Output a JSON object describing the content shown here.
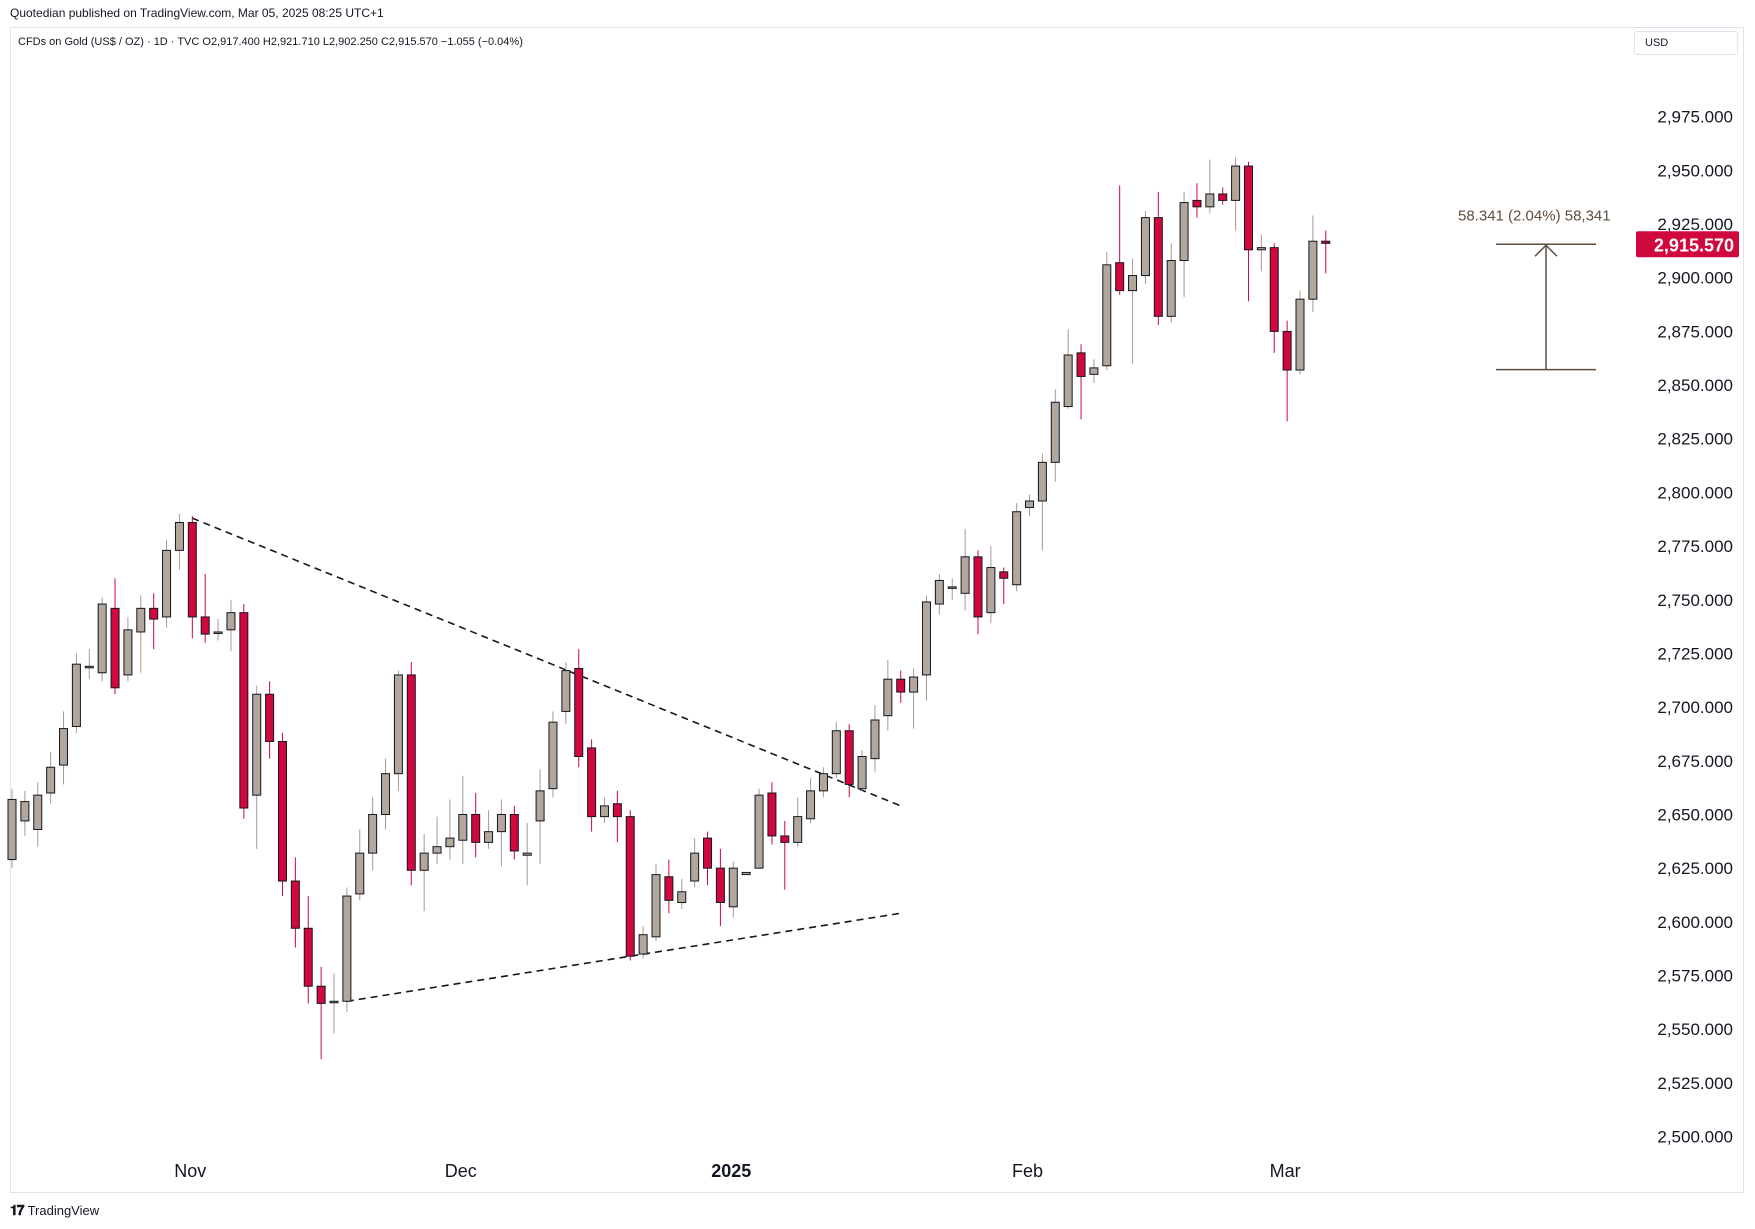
{
  "header": {
    "publish_line": "Quotedian published on TradingView.com, Mar 05, 2025 08:25 UTC+1",
    "symbol_line": "CFDs on Gold (US$ / OZ) · 1D · TVC  O2,917.400  H2,921.710  L2,902.250  C2,915.570  −1.055 (−0.04%)",
    "currency": "USD"
  },
  "footer": {
    "logo_icon": "tradingview-logo-icon",
    "brand": "TradingView"
  },
  "colors": {
    "up": "#b2a79c",
    "down": "#d1083e",
    "wick_up": "#a69b8f",
    "wick_down": "#d1083e",
    "outline": "#131722",
    "measure": "#5d4e3d",
    "price_label_bg": "#d1083e"
  },
  "chart_data": {
    "type": "candlestick",
    "title": "CFDs on Gold (US$ / OZ)",
    "timeframe": "1D",
    "ylim": [
      2490,
      3000
    ],
    "y_ticks": [
      "2,500.000",
      "2,525.000",
      "2,550.000",
      "2,575.000",
      "2,600.000",
      "2,625.000",
      "2,650.000",
      "2,675.000",
      "2,700.000",
      "2,725.000",
      "2,750.000",
      "2,775.000",
      "2,800.000",
      "2,825.000",
      "2,850.000",
      "2,875.000",
      "2,900.000",
      "2,925.000",
      "2,950.000",
      "2,975.000"
    ],
    "x_ticks": [
      {
        "label": "Nov",
        "index": 14
      },
      {
        "label": "Dec",
        "index": 35
      },
      {
        "label": "2025",
        "index": 56
      },
      {
        "label": "Feb",
        "index": 79
      },
      {
        "label": "Mar",
        "index": 99
      }
    ],
    "candles": [
      [
        2629,
        2657,
        2662,
        2625
      ],
      [
        2647,
        2656,
        2661,
        2640
      ],
      [
        2643,
        2659,
        2665,
        2635
      ],
      [
        2660,
        2672,
        2679,
        2655
      ],
      [
        2673,
        2690,
        2698,
        2664
      ],
      [
        2691,
        2720,
        2725,
        2688
      ],
      [
        2719,
        2719,
        2727,
        2713
      ],
      [
        2716,
        2748,
        2751,
        2712
      ],
      [
        2746,
        2709,
        2760,
        2706
      ],
      [
        2715,
        2736,
        2742,
        2712
      ],
      [
        2735,
        2746,
        2752,
        2716
      ],
      [
        2746,
        2741,
        2753,
        2727
      ],
      [
        2742,
        2773,
        2778,
        2737
      ],
      [
        2773,
        2786,
        2790,
        2764
      ],
      [
        2786,
        2742,
        2789,
        2732
      ],
      [
        2742,
        2734,
        2762,
        2730
      ],
      [
        2735,
        2735,
        2741,
        2731
      ],
      [
        2736,
        2744,
        2750,
        2726
      ],
      [
        2744,
        2653,
        2748,
        2648
      ],
      [
        2659,
        2706,
        2710,
        2634
      ],
      [
        2706,
        2684,
        2712,
        2676
      ],
      [
        2684,
        2619,
        2688,
        2612
      ],
      [
        2619,
        2597,
        2630,
        2588
      ],
      [
        2597,
        2570,
        2612,
        2562
      ],
      [
        2570,
        2562,
        2579,
        2536
      ],
      [
        2563,
        2563,
        2576,
        2548
      ],
      [
        2563,
        2612,
        2616,
        2558
      ],
      [
        2613,
        2632,
        2643,
        2610
      ],
      [
        2632,
        2650,
        2658,
        2624
      ],
      [
        2650,
        2669,
        2676,
        2643
      ],
      [
        2669,
        2715,
        2717,
        2661
      ],
      [
        2715,
        2624,
        2721,
        2617
      ],
      [
        2624,
        2632,
        2641,
        2605
      ],
      [
        2632,
        2635,
        2649,
        2627
      ],
      [
        2635,
        2639,
        2657,
        2629
      ],
      [
        2638,
        2650,
        2668,
        2627
      ],
      [
        2650,
        2637,
        2660,
        2630
      ],
      [
        2637,
        2642,
        2652,
        2634
      ],
      [
        2642,
        2650,
        2657,
        2626
      ],
      [
        2650,
        2633,
        2654,
        2629
      ],
      [
        2631,
        2632,
        2646,
        2617
      ],
      [
        2647,
        2661,
        2671,
        2627
      ],
      [
        2662,
        2693,
        2698,
        2658
      ],
      [
        2698,
        2717,
        2721,
        2692
      ],
      [
        2718,
        2677,
        2727,
        2672
      ],
      [
        2681,
        2649,
        2685,
        2642
      ],
      [
        2649,
        2654,
        2658,
        2646
      ],
      [
        2655,
        2649,
        2661,
        2637
      ],
      [
        2649,
        2584,
        2652,
        2582
      ],
      [
        2585,
        2594,
        2598,
        2583
      ],
      [
        2593,
        2622,
        2627,
        2591
      ],
      [
        2621,
        2610,
        2629,
        2604
      ],
      [
        2609,
        2614,
        2620,
        2606
      ],
      [
        2619,
        2632,
        2639,
        2616
      ],
      [
        2639,
        2625,
        2642,
        2617
      ],
      [
        2625,
        2609,
        2634,
        2598
      ],
      [
        2607,
        2625,
        2628,
        2602
      ],
      [
        2622,
        2623,
        2623,
        2622
      ],
      [
        2625,
        2659,
        2662,
        2626
      ],
      [
        2660,
        2640,
        2665,
        2636
      ],
      [
        2640,
        2637,
        2647,
        2615
      ],
      [
        2637,
        2649,
        2658,
        2635
      ],
      [
        2648,
        2661,
        2667,
        2646
      ],
      [
        2661,
        2669,
        2672,
        2658
      ],
      [
        2669,
        2689,
        2693,
        2667
      ],
      [
        2689,
        2664,
        2692,
        2658
      ],
      [
        2662,
        2677,
        2680,
        2661
      ],
      [
        2676,
        2694,
        2701,
        2670
      ],
      [
        2696,
        2713,
        2722,
        2689
      ],
      [
        2713,
        2707,
        2717,
        2702
      ],
      [
        2707,
        2714,
        2718,
        2690
      ],
      [
        2715,
        2749,
        2752,
        2703
      ],
      [
        2748,
        2759,
        2762,
        2743
      ],
      [
        2756,
        2756,
        2760,
        2750
      ],
      [
        2753,
        2770,
        2783,
        2745
      ],
      [
        2770,
        2742,
        2773,
        2734
      ],
      [
        2744,
        2765,
        2775,
        2739
      ],
      [
        2763,
        2760,
        2765,
        2748
      ],
      [
        2757,
        2791,
        2795,
        2754
      ],
      [
        2793,
        2796,
        2799,
        2789
      ],
      [
        2796,
        2814,
        2818,
        2773
      ],
      [
        2814,
        2842,
        2848,
        2805
      ],
      [
        2840,
        2864,
        2876,
        2839
      ],
      [
        2865,
        2854,
        2869,
        2834
      ],
      [
        2855,
        2858,
        2862,
        2851
      ],
      [
        2859,
        2906,
        2912,
        2857
      ],
      [
        2907,
        2894,
        2943,
        2892
      ],
      [
        2894,
        2901,
        2909,
        2860
      ],
      [
        2901,
        2928,
        2931,
        2897
      ],
      [
        2928,
        2882,
        2940,
        2878
      ],
      [
        2882,
        2908,
        2916,
        2879
      ],
      [
        2908,
        2935,
        2940,
        2891
      ],
      [
        2936,
        2933,
        2944,
        2928
      ],
      [
        2933,
        2939,
        2955,
        2930
      ],
      [
        2939,
        2936,
        2942,
        2934
      ],
      [
        2936,
        2952,
        2956,
        2922
      ],
      [
        2952,
        2913,
        2954,
        2889
      ],
      [
        2913,
        2914,
        2920,
        2903
      ],
      [
        2914,
        2875,
        2916,
        2865
      ],
      [
        2875,
        2857,
        2880,
        2833
      ],
      [
        2857,
        2890,
        2894,
        2855
      ],
      [
        2890,
        2917,
        2929,
        2884
      ],
      [
        2917,
        2916,
        2922,
        2902
      ]
    ],
    "last_price": "2,915.570",
    "measure_label": "58.341 (2.04%) 58,341",
    "measure_from": 2857.2,
    "measure_to": 2915.57,
    "trendlines": [
      {
        "style": "dashed",
        "from": {
          "index": 14,
          "price": 2788
        },
        "to": {
          "index": 69,
          "price": 2654
        }
      },
      {
        "style": "dashed",
        "from": {
          "index": 26,
          "price": 2563
        },
        "to": {
          "index": 69,
          "price": 2604
        }
      }
    ],
    "grid": false,
    "legend": false
  }
}
